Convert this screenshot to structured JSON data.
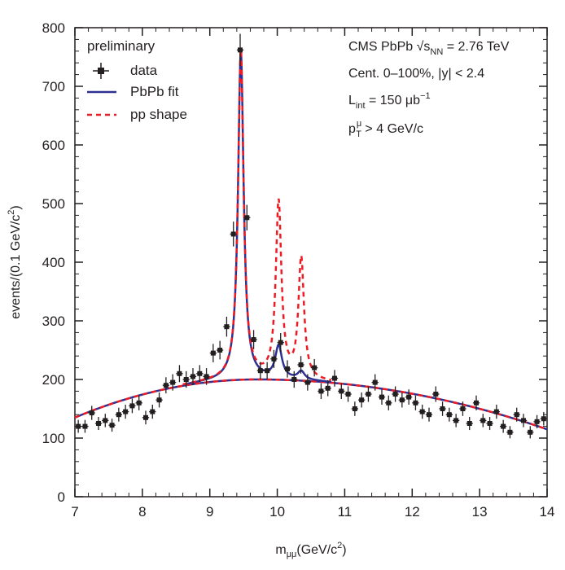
{
  "chart_data": {
    "type": "scatter",
    "xlabel": {
      "main": "m",
      "sub": "μμ",
      "rest": "(GeV/c",
      "sup": "2",
      "close": ")"
    },
    "ylabel": {
      "main": "events/(0.1 GeV/c",
      "sup": "2",
      "close": ")"
    },
    "xlim": [
      7,
      14
    ],
    "ylim": [
      0,
      800
    ],
    "x_ticks": [
      "7",
      "8",
      "9",
      "10",
      "11",
      "12",
      "13",
      "14"
    ],
    "y_ticks": [
      "0",
      "100",
      "200",
      "300",
      "400",
      "500",
      "600",
      "700",
      "800"
    ],
    "grid": false,
    "legend_position": "top-left",
    "legend": {
      "title": "preliminary",
      "items": [
        "data",
        "PbPb fit",
        "pp shape"
      ]
    },
    "annotations": {
      "line1": {
        "text": "CMS PbPb √s",
        "sub": "NN",
        "rest": " = 2.76 TeV"
      },
      "line2": {
        "text": "Cent. 0–100%, |y| < 2.4"
      },
      "line3": {
        "text": "L",
        "sub": "int",
        "rest": " = 150 μb",
        "sup": "−1"
      },
      "line4": {
        "text": "p",
        "sup": "μ",
        "sub": "T",
        "rest": " > 4 GeV/c"
      }
    },
    "colors": {
      "data": "#231f20",
      "pbpb_fit": "#2e3192",
      "pp_shape": "#ed1c24"
    },
    "series": [
      {
        "name": "data",
        "x": [
          7.05,
          7.15,
          7.25,
          7.35,
          7.45,
          7.55,
          7.65,
          7.75,
          7.85,
          7.95,
          8.05,
          8.15,
          8.25,
          8.35,
          8.45,
          8.55,
          8.65,
          8.75,
          8.85,
          8.95,
          9.05,
          9.15,
          9.25,
          9.35,
          9.45,
          9.55,
          9.65,
          9.75,
          9.85,
          9.95,
          10.05,
          10.15,
          10.25,
          10.35,
          10.45,
          10.55,
          10.65,
          10.75,
          10.85,
          10.95,
          11.05,
          11.15,
          11.25,
          11.35,
          11.45,
          11.55,
          11.65,
          11.75,
          11.85,
          11.95,
          12.05,
          12.15,
          12.25,
          12.35,
          12.45,
          12.55,
          12.65,
          12.75,
          12.85,
          12.95,
          13.05,
          13.15,
          13.25,
          13.35,
          13.45,
          13.55,
          13.65,
          13.75,
          13.85,
          13.95
        ],
        "y": [
          120,
          120,
          143,
          125,
          130,
          122,
          140,
          145,
          155,
          160,
          135,
          145,
          165,
          190,
          195,
          210,
          200,
          205,
          210,
          205,
          245,
          250,
          290,
          448,
          762,
          476,
          268,
          215,
          215,
          235,
          263,
          218,
          200,
          225,
          195,
          220,
          180,
          185,
          202,
          180,
          175,
          150,
          165,
          175,
          195,
          170,
          160,
          175,
          165,
          170,
          160,
          145,
          140,
          175,
          150,
          140,
          130,
          150,
          125,
          160,
          130,
          125,
          145,
          120,
          110,
          140,
          130,
          110,
          128,
          133
        ]
      },
      {
        "name": "PbPb fit",
        "peaks": [
          {
            "mass": 9.46,
            "amplitude": 560,
            "width": 0.05
          },
          {
            "mass": 10.02,
            "amplitude": 55,
            "width": 0.06
          },
          {
            "mass": 10.355,
            "amplitude": 14,
            "width": 0.06
          }
        ]
      },
      {
        "name": "pp shape",
        "peaks": [
          {
            "mass": 9.46,
            "amplitude": 560,
            "width": 0.05
          },
          {
            "mass": 10.02,
            "amplitude": 300,
            "width": 0.05
          },
          {
            "mass": 10.355,
            "amplitude": 205,
            "width": 0.05
          }
        ]
      },
      {
        "name": "background",
        "function": "y = 200 - 65 * ((x - 9.7) / 2.7)^2 for x < 9.7, else y = 200 - 85 * ((x - 9.7) / 4.3)^2"
      }
    ]
  }
}
